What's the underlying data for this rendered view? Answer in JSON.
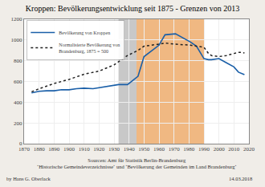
{
  "chart_data": {
    "type": "line",
    "title": "Kroppen: Bevölkerungsentwicklung seit 1875 - Grenzen von 2013",
    "series": [
      {
        "name": "Bevölkerung von Kroppen",
        "color": "#1a5fa8",
        "line_style": "solid",
        "x": [
          1875,
          1880,
          1885,
          1890,
          1895,
          1900,
          1905,
          1910,
          1916,
          1925,
          1933,
          1939,
          1946,
          1950,
          1960,
          1964,
          1971,
          1981,
          1985,
          1990,
          1993,
          1995,
          2000,
          2005,
          2010,
          2013,
          2015,
          2017
        ],
        "values": [
          490,
          505,
          510,
          510,
          520,
          520,
          530,
          535,
          530,
          550,
          570,
          570,
          650,
          840,
          950,
          1050,
          1060,
          980,
          940,
          820,
          810,
          810,
          820,
          780,
          740,
          690,
          680,
          665
        ]
      },
      {
        "name": "Normalisierte Bevölkerung von\nBrandenburg, 1875 = 500",
        "color": "#222222",
        "line_style": "dotted",
        "x": [
          1875,
          1880,
          1890,
          1900,
          1910,
          1920,
          1925,
          1930,
          1933,
          1939,
          1946,
          1950,
          1960,
          1964,
          1971,
          1981,
          1985,
          1990,
          1993,
          1995,
          2000,
          2005,
          2010,
          2013,
          2015,
          2017
        ],
        "values": [
          500,
          530,
          580,
          620,
          670,
          700,
          730,
          760,
          790,
          850,
          900,
          940,
          960,
          970,
          960,
          950,
          940,
          930,
          870,
          850,
          840,
          850,
          870,
          880,
          880,
          875
        ]
      }
    ],
    "shaded_periods": [
      {
        "start": 1933,
        "end": 1945,
        "color": "#c8c8c8"
      },
      {
        "start": 1945,
        "end": 1990,
        "color": "#f0b882"
      }
    ],
    "xlim": [
      1870,
      2020
    ],
    "xticks": [
      1870,
      1880,
      1890,
      1900,
      1910,
      1920,
      1930,
      1940,
      1950,
      1960,
      1970,
      1980,
      1990,
      2000,
      2010,
      2020
    ],
    "ylim": [
      0,
      1200
    ],
    "yticks": [
      0,
      200,
      400,
      600,
      800,
      1000,
      1200
    ],
    "grid": true,
    "legend": "upper left",
    "source": "Sourcen: Amt für Statistik Berlin-Brandenburg\n‘Historische Gemeindeverzeichnisse‘ und ‘Bevölkerung der Gemeinden im Land Brandenburg‘",
    "author": "by Hans G. Oberlack",
    "date": "14.03.2018",
    "background_color": "#f0ede8"
  }
}
